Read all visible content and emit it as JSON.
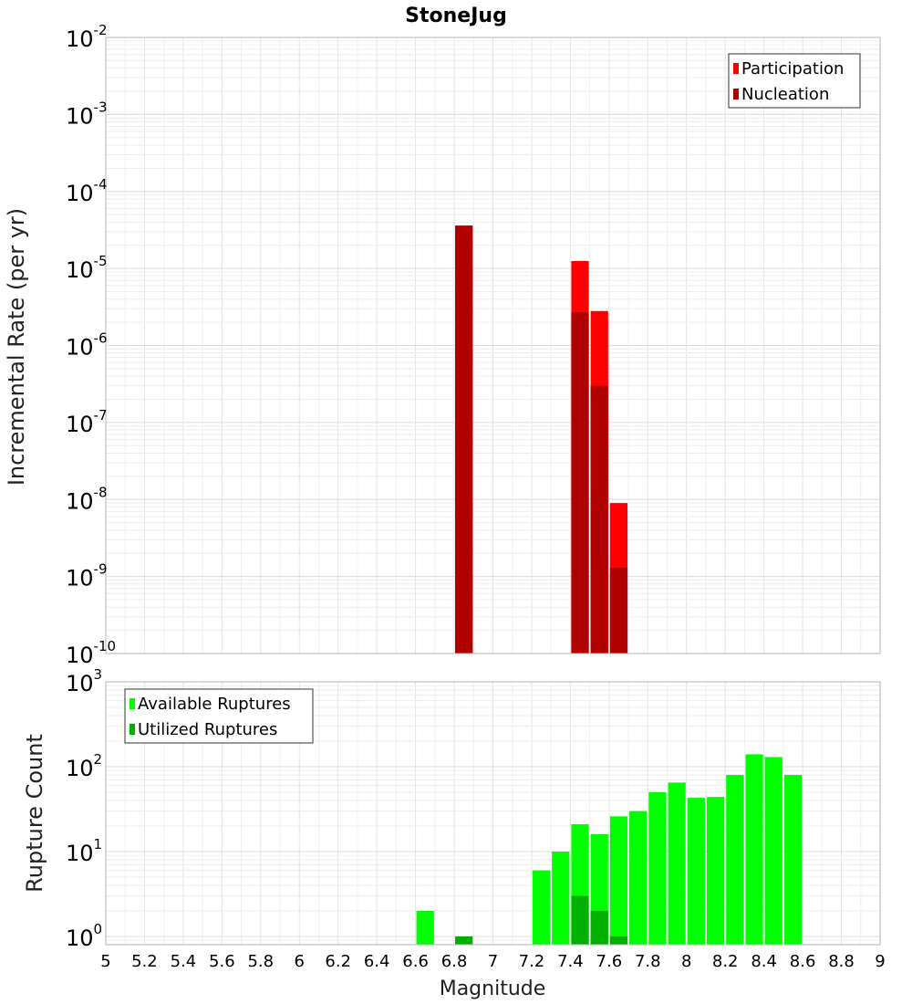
{
  "chart_data": [
    {
      "type": "bar",
      "title": "StoneJug",
      "ylabel": "Incremental Rate (per yr)",
      "xlabel": "",
      "yscale": "log",
      "ylim": [
        1e-10,
        0.01
      ],
      "xlim": [
        5,
        9
      ],
      "legend_placement": "top-right",
      "grid": true,
      "y_ticks": [
        {
          "base": "10",
          "exp": "-10",
          "value": 1e-10
        },
        {
          "base": "10",
          "exp": "-9",
          "value": 1e-09
        },
        {
          "base": "10",
          "exp": "-8",
          "value": 1e-08
        },
        {
          "base": "10",
          "exp": "-7",
          "value": 1e-07
        },
        {
          "base": "10",
          "exp": "-6",
          "value": 1e-06
        },
        {
          "base": "10",
          "exp": "-5",
          "value": 1e-05
        },
        {
          "base": "10",
          "exp": "-4",
          "value": 0.0001
        },
        {
          "base": "10",
          "exp": "-3",
          "value": 0.001
        },
        {
          "base": "10",
          "exp": "-2",
          "value": 0.01
        }
      ],
      "series": [
        {
          "name": "Participation",
          "color": "#ff0000",
          "points": [
            {
              "x": 6.85,
              "y": 3.6e-05
            },
            {
              "x": 7.45,
              "y": 1.25e-05
            },
            {
              "x": 7.55,
              "y": 2.8e-06
            },
            {
              "x": 7.65,
              "y": 9e-09
            }
          ]
        },
        {
          "name": "Nucleation",
          "color": "#b00000",
          "points": [
            {
              "x": 6.85,
              "y": 3.6e-05
            },
            {
              "x": 7.45,
              "y": 2.7e-06
            },
            {
              "x": 7.55,
              "y": 3e-07
            },
            {
              "x": 7.65,
              "y": 1.3e-09
            }
          ]
        }
      ]
    },
    {
      "type": "bar",
      "title": "",
      "ylabel": "Rupture Count",
      "xlabel": "Magnitude",
      "yscale": "log",
      "ylim": [
        0.8,
        1000
      ],
      "xlim": [
        5,
        9
      ],
      "legend_placement": "top-left",
      "grid": true,
      "x_ticks": [
        "5",
        "5.2",
        "5.4",
        "5.6",
        "5.8",
        "6",
        "6.2",
        "6.4",
        "6.6",
        "6.8",
        "7",
        "7.2",
        "7.4",
        "7.6",
        "7.8",
        "8",
        "8.2",
        "8.4",
        "8.6",
        "8.8",
        "9"
      ],
      "y_ticks": [
        {
          "base": "10",
          "exp": "0",
          "value": 1
        },
        {
          "base": "10",
          "exp": "1",
          "value": 10
        },
        {
          "base": "10",
          "exp": "2",
          "value": 100
        },
        {
          "base": "10",
          "exp": "3",
          "value": 1000
        }
      ],
      "series": [
        {
          "name": "Available Ruptures",
          "color": "#00ff00",
          "points": [
            {
              "x": 6.65,
              "y": 2
            },
            {
              "x": 7.25,
              "y": 6
            },
            {
              "x": 7.35,
              "y": 10
            },
            {
              "x": 7.45,
              "y": 21
            },
            {
              "x": 7.55,
              "y": 16
            },
            {
              "x": 7.65,
              "y": 26
            },
            {
              "x": 7.75,
              "y": 30
            },
            {
              "x": 7.85,
              "y": 50
            },
            {
              "x": 7.95,
              "y": 65
            },
            {
              "x": 8.05,
              "y": 43
            },
            {
              "x": 8.15,
              "y": 44
            },
            {
              "x": 8.25,
              "y": 80
            },
            {
              "x": 8.35,
              "y": 140
            },
            {
              "x": 8.45,
              "y": 130
            },
            {
              "x": 8.55,
              "y": 80
            }
          ]
        },
        {
          "name": "Utilized Ruptures",
          "color": "#00b000",
          "points": [
            {
              "x": 6.85,
              "y": 1
            },
            {
              "x": 7.45,
              "y": 3
            },
            {
              "x": 7.55,
              "y": 2
            },
            {
              "x": 7.65,
              "y": 1
            }
          ]
        }
      ]
    }
  ]
}
